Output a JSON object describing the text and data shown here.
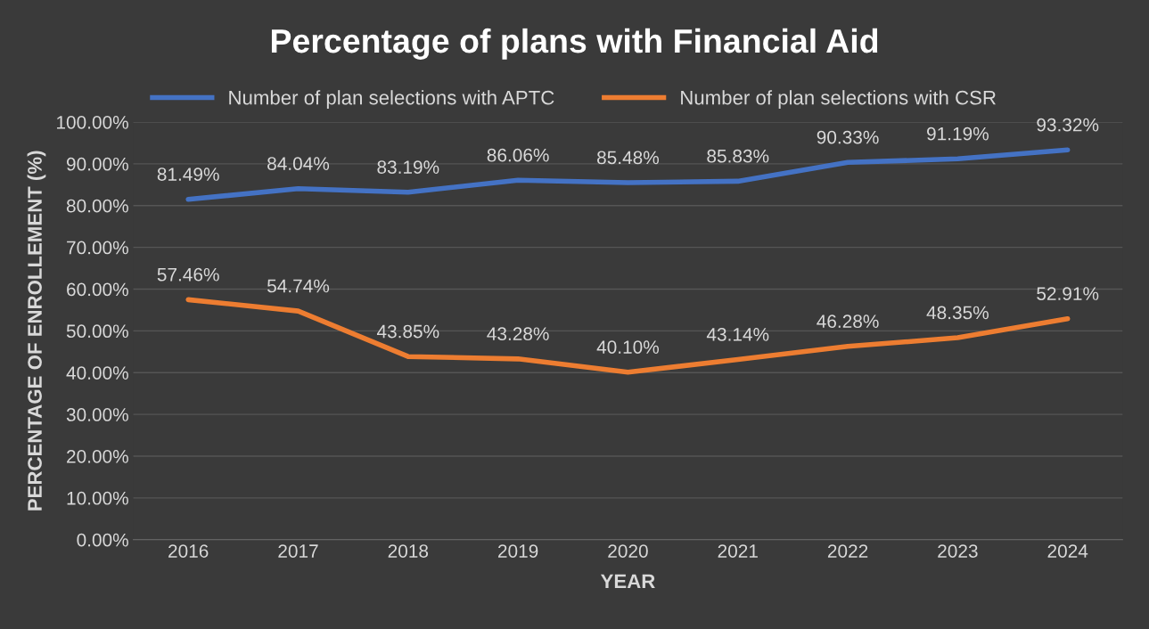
{
  "chart_data": {
    "type": "line",
    "title": "Percentage of plans with Financial Aid",
    "xlabel": "YEAR",
    "ylabel": "PERCENTAGE OF ENROLLEMENT (%)",
    "categories": [
      "2016",
      "2017",
      "2018",
      "2019",
      "2020",
      "2021",
      "2022",
      "2023",
      "2024"
    ],
    "series": [
      {
        "name": "Number of plan selections with APTC",
        "color": "#4472c4",
        "values": [
          81.49,
          84.04,
          83.19,
          86.06,
          85.48,
          85.83,
          90.33,
          91.19,
          93.32
        ],
        "value_labels": [
          "81.49%",
          "84.04%",
          "83.19%",
          "86.06%",
          "85.48%",
          "85.83%",
          "90.33%",
          "91.19%",
          "93.32%"
        ]
      },
      {
        "name": "Number of plan selections with CSR",
        "color": "#ed7d31",
        "values": [
          57.46,
          54.74,
          43.85,
          43.28,
          40.1,
          43.14,
          46.28,
          48.35,
          52.91
        ],
        "value_labels": [
          "57.46%",
          "54.74%",
          "43.85%",
          "43.28%",
          "40.10%",
          "43.14%",
          "46.28%",
          "48.35%",
          "52.91%"
        ]
      }
    ],
    "ylim": [
      0,
      100
    ],
    "yticks": [
      {
        "value": 0,
        "label": "0.00%"
      },
      {
        "value": 10,
        "label": "10.00%"
      },
      {
        "value": 20,
        "label": "20.00%"
      },
      {
        "value": 30,
        "label": "30.00%"
      },
      {
        "value": 40,
        "label": "40.00%"
      },
      {
        "value": 50,
        "label": "50.00%"
      },
      {
        "value": 60,
        "label": "60.00%"
      },
      {
        "value": 70,
        "label": "70.00%"
      },
      {
        "value": 80,
        "label": "80.00%"
      },
      {
        "value": 90,
        "label": "90.00%"
      },
      {
        "value": 100,
        "label": "100.00%"
      }
    ],
    "grid": "y",
    "legend": "top",
    "marker": "none",
    "line_style": "solid"
  }
}
